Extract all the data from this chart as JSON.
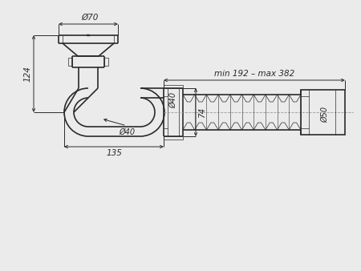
{
  "bg_color": "#ebebeb",
  "line_color": "#2a2a2a",
  "dim_color": "#2a2a2a",
  "lw_main": 1.2,
  "lw_dim": 0.7,
  "lw_thin": 0.5,
  "annotations": {
    "phi70": "Ø70",
    "phi40_siphon": "Ø40",
    "phi40_tube": "Ø40",
    "phi50": "Ø50",
    "dim124": "124",
    "dim74": "74",
    "dim135": "135",
    "dim_range": "min 192 – max 382"
  }
}
